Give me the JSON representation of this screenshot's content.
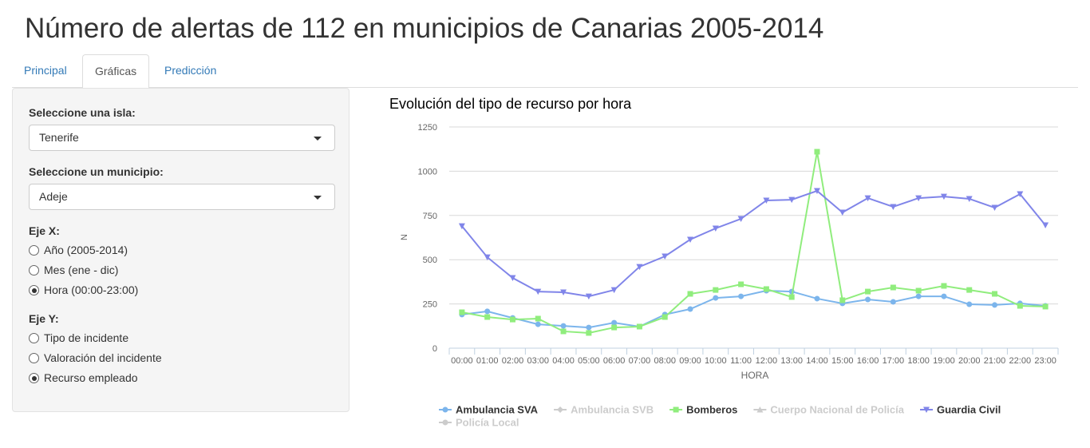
{
  "header": {
    "title": "Número de alertas de 112 en municipios de Canarias 2005-2014"
  },
  "tabs": [
    "Principal",
    "Gráficas",
    "Predicción"
  ],
  "active_tab": 1,
  "sidebar": {
    "isla": {
      "label": "Seleccione una isla:",
      "value": "Tenerife"
    },
    "municipio": {
      "label": "Seleccione un municipio:",
      "value": "Adeje"
    },
    "eje_x": {
      "label": "Eje X:",
      "options": [
        "Año (2005-2014)",
        "Mes (ene - dic)",
        "Hora (00:00-23:00)"
      ],
      "selected": 2
    },
    "eje_y": {
      "label": "Eje Y:",
      "options": [
        "Tipo de incidente",
        "Valoración del incidente",
        "Recurso empleado"
      ],
      "selected": 2
    }
  },
  "chart_data": {
    "type": "line",
    "title": "Evolución del tipo de recurso por hora",
    "x_label": "HORA",
    "y_label": "N",
    "categories": [
      "00:00",
      "01:00",
      "02:00",
      "03:00",
      "04:00",
      "05:00",
      "06:00",
      "07:00",
      "08:00",
      "09:00",
      "10:00",
      "11:00",
      "12:00",
      "13:00",
      "14:00",
      "15:00",
      "16:00",
      "17:00",
      "18:00",
      "19:00",
      "20:00",
      "21:00",
      "22:00",
      "23:00"
    ],
    "ylim": [
      0,
      1250
    ],
    "yticks": [
      0,
      250,
      500,
      750,
      1000,
      1250
    ],
    "grid": true,
    "series": [
      {
        "name": "Ambulancia SVA",
        "color": "#7cb5ec",
        "marker": "circle",
        "visible": true,
        "values": [
          190,
          208,
          171,
          135,
          126,
          117,
          144,
          122,
          190,
          221,
          284,
          293,
          325,
          320,
          280,
          253,
          275,
          262,
          293,
          293,
          248,
          244,
          253,
          239
        ]
      },
      {
        "name": "Ambulancia SVB",
        "color": "#cccccc",
        "marker": "diamond",
        "visible": false
      },
      {
        "name": "Bomberos",
        "color": "#90ed7d",
        "marker": "square",
        "visible": true,
        "values": [
          203,
          176,
          162,
          167,
          95,
          86,
          117,
          122,
          176,
          307,
          329,
          361,
          334,
          289,
          1110,
          271,
          320,
          343,
          325,
          352,
          329,
          307,
          239,
          235
        ]
      },
      {
        "name": "Cuerpo Nacional de Policía",
        "color": "#cccccc",
        "marker": "triangle",
        "visible": false
      },
      {
        "name": "Guardia Civil",
        "color": "#8085e9",
        "marker": "triangle-down",
        "visible": true,
        "values": [
          690,
          514,
          397,
          320,
          316,
          293,
          329,
          460,
          519,
          614,
          677,
          731,
          835,
          839,
          889,
          767,
          848,
          799,
          848,
          857,
          844,
          794,
          871,
          695
        ]
      },
      {
        "name": "Policía Local",
        "color": "#cccccc",
        "marker": "circle",
        "visible": false
      }
    ]
  }
}
